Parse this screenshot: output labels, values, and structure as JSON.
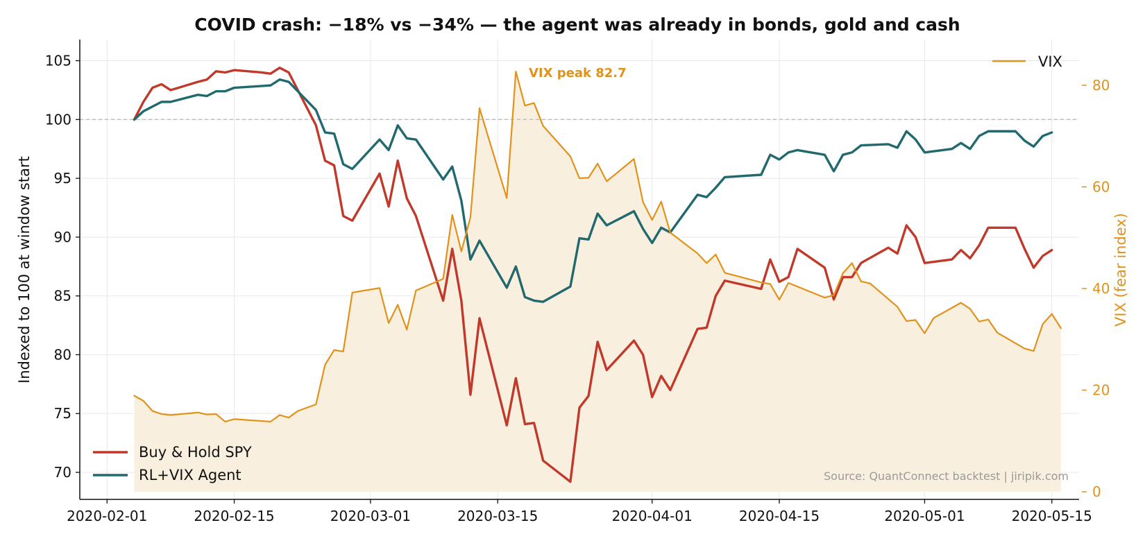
{
  "chart_data": {
    "type": "line",
    "title": "COVID crash: −18% vs −34% — the agent was already in bonds, gold and cash",
    "ylabel": "Indexed to 100 at window start",
    "y2label": "VIX (fear index)",
    "xlabel": "",
    "xlim": [
      "2020-01-29",
      "2020-05-18"
    ],
    "ylim": [
      67.7,
      106.8
    ],
    "y2lim": [
      -1.5,
      89
    ],
    "x_ticks": [
      "2020-02-01",
      "2020-02-15",
      "2020-03-01",
      "2020-03-15",
      "2020-04-01",
      "2020-04-15",
      "2020-05-01",
      "2020-05-15"
    ],
    "y_ticks": [
      70,
      75,
      80,
      85,
      90,
      95,
      100,
      105
    ],
    "y2_ticks": [
      0,
      20,
      40,
      60,
      80
    ],
    "reference_line": 100,
    "grid": true,
    "annotation": "VIX peak 82.7",
    "source": "Source: QuantConnect backtest  |  jiripik.com",
    "colors": {
      "spy": "#c0392b",
      "agent": "#22696f",
      "vix": "#e0921a",
      "vix_fill": "#f9efdf",
      "ref": "#bbbbbb",
      "grid": "#e8e8e8"
    },
    "legend_left": {
      "position": "lower-left",
      "entries": [
        "Buy & Hold SPY",
        "RL+VIX Agent"
      ]
    },
    "legend_right": {
      "position": "upper-right",
      "entries": [
        "VIX"
      ]
    },
    "series": [
      {
        "name": "Buy & Hold SPY",
        "axis": "left",
        "points": [
          [
            "2020-02-04",
            100.0
          ],
          [
            "2020-02-05",
            101.5
          ],
          [
            "2020-02-06",
            102.7
          ],
          [
            "2020-02-07",
            103.0
          ],
          [
            "2020-02-08",
            102.5
          ],
          [
            "2020-02-11",
            103.2
          ],
          [
            "2020-02-12",
            103.4
          ],
          [
            "2020-02-13",
            104.1
          ],
          [
            "2020-02-14",
            104.0
          ],
          [
            "2020-02-15",
            104.2
          ],
          [
            "2020-02-18",
            104.0
          ],
          [
            "2020-02-19",
            103.9
          ],
          [
            "2020-02-20",
            104.4
          ],
          [
            "2020-02-21",
            104.0
          ],
          [
            "2020-02-24",
            99.5
          ],
          [
            "2020-02-25",
            96.5
          ],
          [
            "2020-02-26",
            96.1
          ],
          [
            "2020-02-27",
            91.8
          ],
          [
            "2020-02-28",
            91.4
          ],
          [
            "2020-03-02",
            95.4
          ],
          [
            "2020-03-03",
            92.6
          ],
          [
            "2020-03-04",
            96.5
          ],
          [
            "2020-03-05",
            93.3
          ],
          [
            "2020-03-06",
            91.8
          ],
          [
            "2020-03-09",
            84.6
          ],
          [
            "2020-03-10",
            89.0
          ],
          [
            "2020-03-11",
            84.6
          ],
          [
            "2020-03-12",
            76.6
          ],
          [
            "2020-03-13",
            83.1
          ],
          [
            "2020-03-16",
            74.0
          ],
          [
            "2020-03-17",
            78.0
          ],
          [
            "2020-03-18",
            74.1
          ],
          [
            "2020-03-19",
            74.2
          ],
          [
            "2020-03-20",
            71.0
          ],
          [
            "2020-03-23",
            69.2
          ],
          [
            "2020-03-24",
            75.5
          ],
          [
            "2020-03-25",
            76.5
          ],
          [
            "2020-03-26",
            81.1
          ],
          [
            "2020-03-27",
            78.7
          ],
          [
            "2020-03-30",
            81.2
          ],
          [
            "2020-03-31",
            80.0
          ],
          [
            "2020-04-01",
            76.4
          ],
          [
            "2020-04-02",
            78.2
          ],
          [
            "2020-04-03",
            77.0
          ],
          [
            "2020-04-06",
            82.2
          ],
          [
            "2020-04-07",
            82.3
          ],
          [
            "2020-04-08",
            85.0
          ],
          [
            "2020-04-09",
            86.3
          ],
          [
            "2020-04-13",
            85.6
          ],
          [
            "2020-04-14",
            88.1
          ],
          [
            "2020-04-15",
            86.2
          ],
          [
            "2020-04-16",
            86.6
          ],
          [
            "2020-04-17",
            89.0
          ],
          [
            "2020-04-20",
            87.4
          ],
          [
            "2020-04-21",
            84.7
          ],
          [
            "2020-04-22",
            86.6
          ],
          [
            "2020-04-23",
            86.6
          ],
          [
            "2020-04-24",
            87.8
          ],
          [
            "2020-04-27",
            89.1
          ],
          [
            "2020-04-28",
            88.6
          ],
          [
            "2020-04-29",
            91.0
          ],
          [
            "2020-04-30",
            90.0
          ],
          [
            "2020-05-01",
            87.8
          ],
          [
            "2020-05-04",
            88.1
          ],
          [
            "2020-05-05",
            88.9
          ],
          [
            "2020-05-06",
            88.2
          ],
          [
            "2020-05-07",
            89.3
          ],
          [
            "2020-05-08",
            90.8
          ],
          [
            "2020-05-11",
            90.8
          ],
          [
            "2020-05-12",
            89.0
          ],
          [
            "2020-05-13",
            87.4
          ],
          [
            "2020-05-14",
            88.4
          ],
          [
            "2020-05-15",
            88.9
          ]
        ]
      },
      {
        "name": "RL+VIX Agent",
        "axis": "left",
        "points": [
          [
            "2020-02-04",
            100.0
          ],
          [
            "2020-02-05",
            100.7
          ],
          [
            "2020-02-06",
            101.1
          ],
          [
            "2020-02-07",
            101.5
          ],
          [
            "2020-02-08",
            101.5
          ],
          [
            "2020-02-11",
            102.1
          ],
          [
            "2020-02-12",
            102.0
          ],
          [
            "2020-02-13",
            102.4
          ],
          [
            "2020-02-14",
            102.4
          ],
          [
            "2020-02-15",
            102.7
          ],
          [
            "2020-02-19",
            102.9
          ],
          [
            "2020-02-20",
            103.4
          ],
          [
            "2020-02-21",
            103.2
          ],
          [
            "2020-02-24",
            100.8
          ],
          [
            "2020-02-25",
            98.9
          ],
          [
            "2020-02-26",
            98.8
          ],
          [
            "2020-02-27",
            96.2
          ],
          [
            "2020-02-28",
            95.8
          ],
          [
            "2020-03-02",
            98.3
          ],
          [
            "2020-03-03",
            97.4
          ],
          [
            "2020-03-04",
            99.5
          ],
          [
            "2020-03-05",
            98.4
          ],
          [
            "2020-03-06",
            98.3
          ],
          [
            "2020-03-09",
            94.9
          ],
          [
            "2020-03-10",
            96.0
          ],
          [
            "2020-03-11",
            93.1
          ],
          [
            "2020-03-12",
            88.1
          ],
          [
            "2020-03-13",
            89.7
          ],
          [
            "2020-03-16",
            85.7
          ],
          [
            "2020-03-17",
            87.5
          ],
          [
            "2020-03-18",
            84.9
          ],
          [
            "2020-03-19",
            84.6
          ],
          [
            "2020-03-20",
            84.5
          ],
          [
            "2020-03-23",
            85.8
          ],
          [
            "2020-03-24",
            89.9
          ],
          [
            "2020-03-25",
            89.8
          ],
          [
            "2020-03-26",
            92.0
          ],
          [
            "2020-03-27",
            91.0
          ],
          [
            "2020-03-30",
            92.2
          ],
          [
            "2020-03-31",
            90.7
          ],
          [
            "2020-04-01",
            89.5
          ],
          [
            "2020-04-02",
            90.8
          ],
          [
            "2020-04-03",
            90.4
          ],
          [
            "2020-04-06",
            93.6
          ],
          [
            "2020-04-07",
            93.4
          ],
          [
            "2020-04-08",
            94.2
          ],
          [
            "2020-04-09",
            95.1
          ],
          [
            "2020-04-13",
            95.3
          ],
          [
            "2020-04-14",
            97.0
          ],
          [
            "2020-04-15",
            96.6
          ],
          [
            "2020-04-16",
            97.2
          ],
          [
            "2020-04-17",
            97.4
          ],
          [
            "2020-04-20",
            97.0
          ],
          [
            "2020-04-21",
            95.6
          ],
          [
            "2020-04-22",
            97.0
          ],
          [
            "2020-04-23",
            97.2
          ],
          [
            "2020-04-24",
            97.8
          ],
          [
            "2020-04-27",
            97.9
          ],
          [
            "2020-04-28",
            97.6
          ],
          [
            "2020-04-29",
            99.0
          ],
          [
            "2020-04-30",
            98.3
          ],
          [
            "2020-05-01",
            97.2
          ],
          [
            "2020-05-04",
            97.5
          ],
          [
            "2020-05-05",
            98.0
          ],
          [
            "2020-05-06",
            97.5
          ],
          [
            "2020-05-07",
            98.6
          ],
          [
            "2020-05-08",
            99.0
          ],
          [
            "2020-05-11",
            99.0
          ],
          [
            "2020-05-12",
            98.2
          ],
          [
            "2020-05-13",
            97.7
          ],
          [
            "2020-05-14",
            98.6
          ],
          [
            "2020-05-15",
            98.9
          ]
        ]
      },
      {
        "name": "VIX",
        "axis": "right",
        "fill": true,
        "points": [
          [
            "2020-02-04",
            18.9
          ],
          [
            "2020-02-05",
            17.9
          ],
          [
            "2020-02-06",
            15.9
          ],
          [
            "2020-02-07",
            15.3
          ],
          [
            "2020-02-08",
            15.1
          ],
          [
            "2020-02-11",
            15.6
          ],
          [
            "2020-02-12",
            15.2
          ],
          [
            "2020-02-13",
            15.3
          ],
          [
            "2020-02-14",
            13.8
          ],
          [
            "2020-02-15",
            14.3
          ],
          [
            "2020-02-19",
            13.8
          ],
          [
            "2020-02-20",
            15.1
          ],
          [
            "2020-02-21",
            14.6
          ],
          [
            "2020-02-22",
            15.9
          ],
          [
            "2020-02-24",
            17.2
          ],
          [
            "2020-02-25",
            25.0
          ],
          [
            "2020-02-26",
            27.9
          ],
          [
            "2020-02-27",
            27.6
          ],
          [
            "2020-02-28",
            39.2
          ],
          [
            "2020-03-02",
            40.1
          ],
          [
            "2020-03-03",
            33.2
          ],
          [
            "2020-03-04",
            36.8
          ],
          [
            "2020-03-05",
            31.9
          ],
          [
            "2020-03-06",
            39.6
          ],
          [
            "2020-03-09",
            41.9
          ],
          [
            "2020-03-10",
            54.5
          ],
          [
            "2020-03-11",
            47.3
          ],
          [
            "2020-03-12",
            54.0
          ],
          [
            "2020-03-13",
            75.5
          ],
          [
            "2020-03-16",
            57.8
          ],
          [
            "2020-03-17",
            82.7
          ],
          [
            "2020-03-18",
            76.0
          ],
          [
            "2020-03-19",
            76.5
          ],
          [
            "2020-03-20",
            72.0
          ],
          [
            "2020-03-23",
            66.0
          ],
          [
            "2020-03-24",
            61.7
          ],
          [
            "2020-03-25",
            61.8
          ],
          [
            "2020-03-26",
            64.6
          ],
          [
            "2020-03-27",
            61.1
          ],
          [
            "2020-03-30",
            65.5
          ],
          [
            "2020-03-31",
            57.0
          ],
          [
            "2020-04-01",
            53.5
          ],
          [
            "2020-04-02",
            57.1
          ],
          [
            "2020-04-03",
            51.0
          ],
          [
            "2020-04-06",
            46.9
          ],
          [
            "2020-04-07",
            45.0
          ],
          [
            "2020-04-08",
            46.7
          ],
          [
            "2020-04-09",
            43.1
          ],
          [
            "2020-04-13",
            41.2
          ],
          [
            "2020-04-14",
            40.9
          ],
          [
            "2020-04-15",
            37.8
          ],
          [
            "2020-04-16",
            41.1
          ],
          [
            "2020-04-20",
            38.2
          ],
          [
            "2020-04-21",
            38.7
          ],
          [
            "2020-04-22",
            43.0
          ],
          [
            "2020-04-23",
            45.0
          ],
          [
            "2020-04-24",
            41.4
          ],
          [
            "2020-04-25",
            41.0
          ],
          [
            "2020-04-28",
            36.4
          ],
          [
            "2020-04-29",
            33.6
          ],
          [
            "2020-04-30",
            33.8
          ],
          [
            "2020-05-01",
            31.2
          ],
          [
            "2020-05-02",
            34.2
          ],
          [
            "2020-05-05",
            37.2
          ],
          [
            "2020-05-06",
            36.0
          ],
          [
            "2020-05-07",
            33.5
          ],
          [
            "2020-05-08",
            33.9
          ],
          [
            "2020-05-09",
            31.3
          ],
          [
            "2020-05-12",
            28.2
          ],
          [
            "2020-05-13",
            27.7
          ],
          [
            "2020-05-14",
            33.0
          ],
          [
            "2020-05-15",
            35.0
          ],
          [
            "2020-05-16",
            32.2
          ]
        ]
      }
    ]
  }
}
